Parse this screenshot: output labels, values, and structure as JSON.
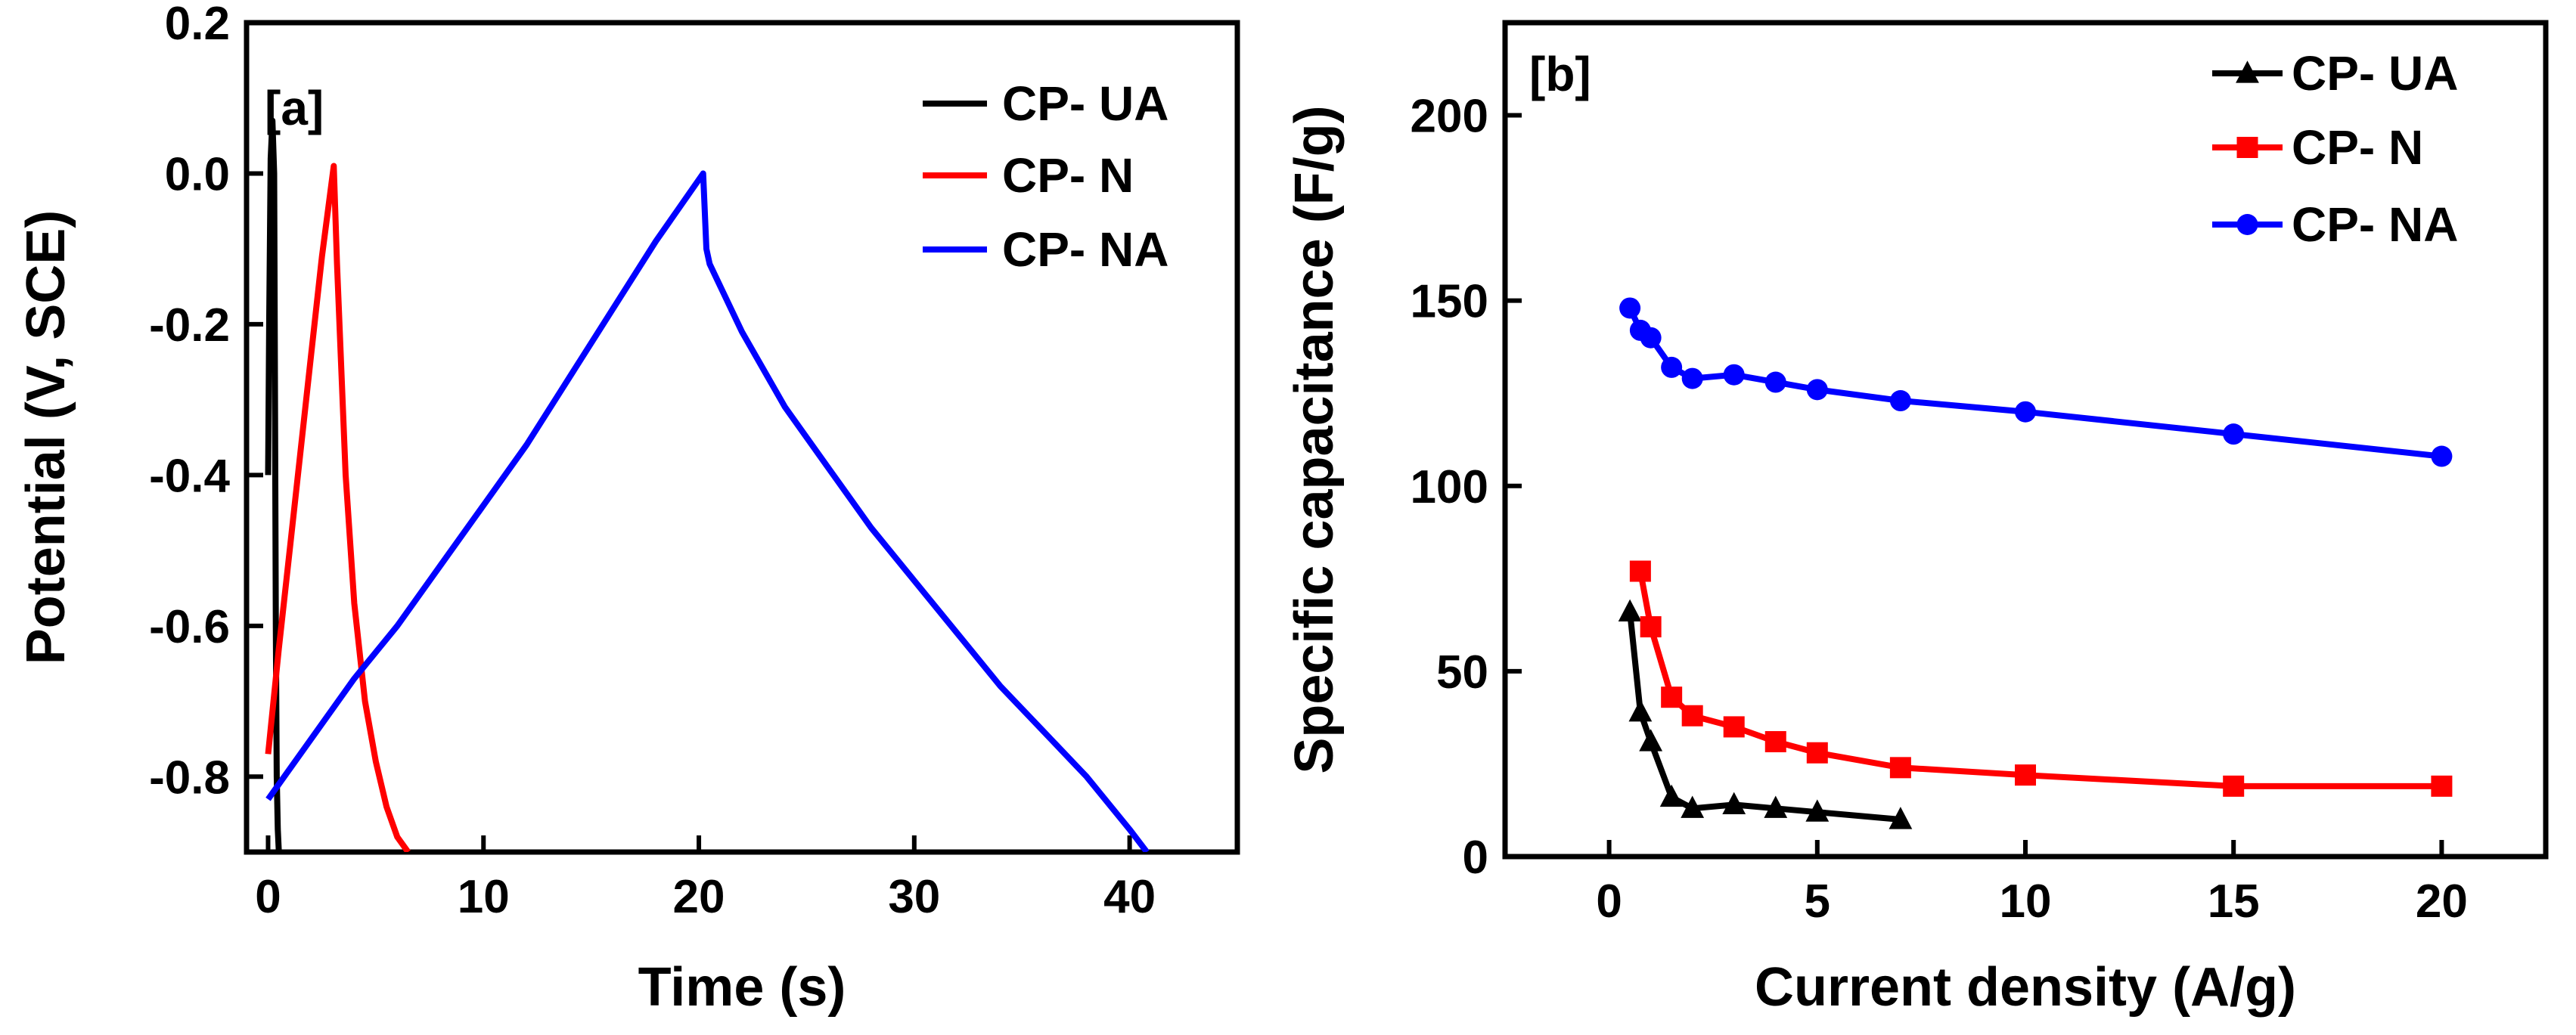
{
  "colors": {
    "CP- UA": "#000000",
    "CP- N": "#ff0000",
    "CP- NA": "#0000ff"
  },
  "chart_data": [
    {
      "panel": "[a]",
      "type": "line",
      "xlabel": "Time (s)",
      "ylabel": "Potential (V, SCE)",
      "xlim": [
        -1,
        45
      ],
      "ylim": [
        -0.9,
        0.2
      ],
      "xticks": [
        0,
        10,
        20,
        30,
        40
      ],
      "yticks": [
        0.2,
        0.0,
        -0.2,
        -0.4,
        -0.6,
        -0.8
      ],
      "ytick_labels": [
        "0.2",
        "0.0",
        "-0.2",
        "-0.4",
        "-0.6",
        "-0.8"
      ],
      "legend_position": "top-right",
      "grid": false,
      "series": [
        {
          "name": "CP- UA",
          "x": [
            0.0,
            0.05,
            0.12,
            0.2,
            0.28,
            0.32,
            0.36,
            0.4,
            0.45,
            0.5
          ],
          "y": [
            -0.4,
            -0.2,
            0.02,
            0.07,
            0.0,
            -0.3,
            -0.6,
            -0.8,
            -0.87,
            -0.9
          ]
        },
        {
          "name": "CP- N",
          "x": [
            0.0,
            0.5,
            1.0,
            1.5,
            2.0,
            2.5,
            3.05,
            3.2,
            3.6,
            4.0,
            4.5,
            5.0,
            5.5,
            6.0,
            6.5
          ],
          "y": [
            -0.77,
            -0.63,
            -0.5,
            -0.37,
            -0.24,
            -0.11,
            0.01,
            -0.12,
            -0.4,
            -0.57,
            -0.7,
            -0.78,
            -0.84,
            -0.88,
            -0.9
          ]
        },
        {
          "name": "CP- NA",
          "x": [
            0.0,
            2.0,
            4.0,
            6.0,
            8.0,
            10.0,
            12.0,
            14.0,
            16.0,
            18.0,
            20.2,
            20.35,
            20.5,
            21.0,
            22.0,
            24.0,
            26.0,
            28.0,
            30.0,
            32.0,
            34.0,
            36.0,
            38.0,
            40.0,
            40.8
          ],
          "y": [
            -0.83,
            -0.75,
            -0.67,
            -0.6,
            -0.52,
            -0.44,
            -0.36,
            -0.27,
            -0.18,
            -0.09,
            0.0,
            -0.1,
            -0.12,
            -0.15,
            -0.21,
            -0.31,
            -0.39,
            -0.47,
            -0.54,
            -0.61,
            -0.68,
            -0.74,
            -0.8,
            -0.87,
            -0.9
          ]
        }
      ]
    },
    {
      "panel": "[b]",
      "type": "line",
      "xlabel": "Current density (A/g)",
      "ylabel": "Specific capacitance (F/g)",
      "xlim": [
        -2.5,
        22.5
      ],
      "ylim": [
        0,
        225
      ],
      "xticks": [
        0,
        5,
        10,
        15,
        20
      ],
      "yticks": [
        0,
        50,
        100,
        150,
        200
      ],
      "legend_position": "top-right",
      "grid": false,
      "series": [
        {
          "name": "CP- UA",
          "marker": "triangle",
          "x": [
            0.5,
            0.75,
            1.0,
            1.5,
            2.0,
            3.0,
            4.0,
            5.0,
            7.0
          ],
          "y": [
            66,
            39,
            31,
            16,
            13,
            14,
            13,
            12,
            10
          ]
        },
        {
          "name": "CP- N",
          "marker": "square",
          "x": [
            0.75,
            1.0,
            1.5,
            2.0,
            3.0,
            4.0,
            5.0,
            7.0,
            10.0,
            15.0,
            20.0
          ],
          "y": [
            77,
            62,
            43,
            38,
            35,
            31,
            28,
            24,
            22,
            19,
            19
          ]
        },
        {
          "name": "CP- NA",
          "marker": "circle",
          "x": [
            0.5,
            0.75,
            1.0,
            1.5,
            2.0,
            3.0,
            4.0,
            5.0,
            7.0,
            10.0,
            15.0,
            20.0
          ],
          "y": [
            148,
            142,
            140,
            132,
            129,
            130,
            128,
            126,
            123,
            120,
            114,
            108
          ]
        }
      ]
    }
  ]
}
